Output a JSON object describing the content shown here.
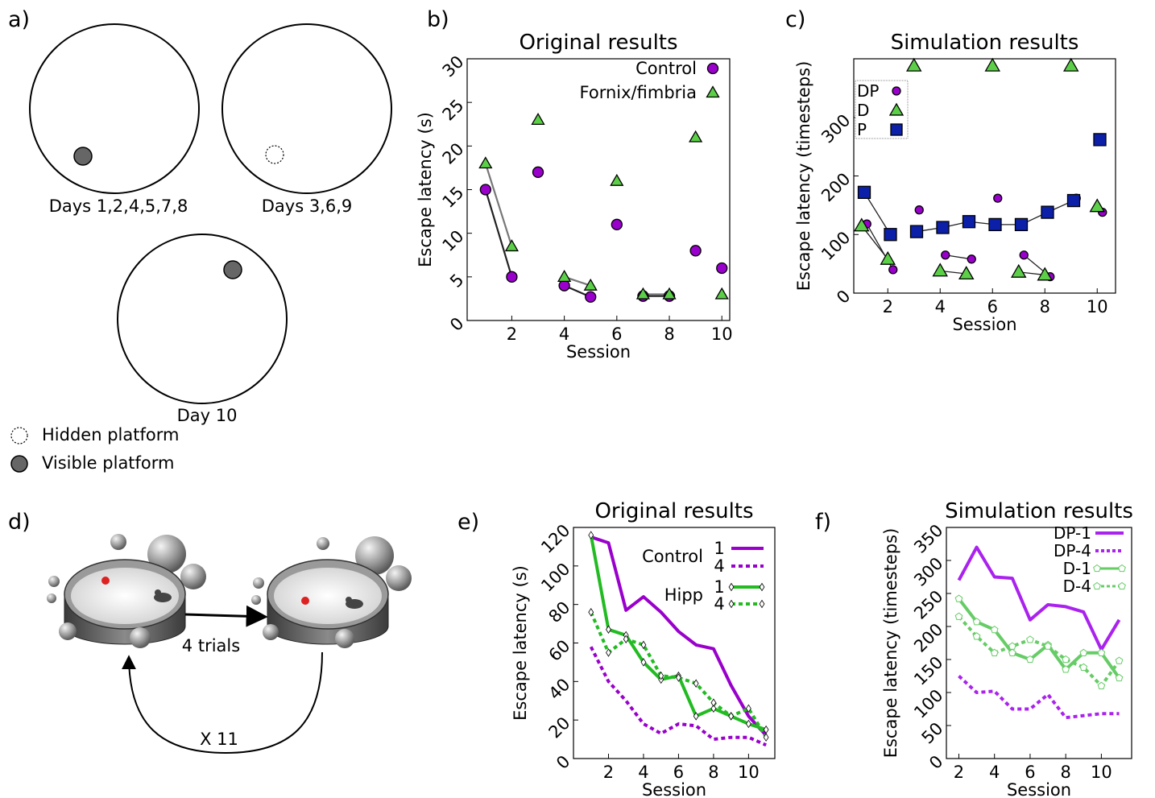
{
  "colors": {
    "purple": "#9900cc",
    "green": "#5ccf48",
    "green_line": "#22bb22",
    "blue": "#0b1fa8",
    "dark_line": "#222222",
    "gray_line": "#777777",
    "platform": "#666666"
  },
  "panel_a": {
    "letter": "a)",
    "labels": [
      "Days 1,2,4,5,7,8",
      "Days 3,6,9",
      "Day 10"
    ],
    "legend": {
      "hidden": "Hidden platform",
      "visible": "Visible platform"
    }
  },
  "panel_d": {
    "letter": "d)",
    "trials_label": "4 trials",
    "repeat_label": "X 11"
  },
  "chart_data": [
    {
      "panel": "b",
      "letter": "b)",
      "type": "scatter",
      "title": "Original results",
      "xlabel": "Session",
      "ylabel": "Escape latency (s)",
      "xlim": [
        0.3,
        10.3
      ],
      "ylim": [
        0,
        30
      ],
      "xticks": [
        2,
        4,
        6,
        8,
        10
      ],
      "yticks": [
        0,
        5,
        10,
        15,
        20,
        25,
        30
      ],
      "legend_position": "top-right",
      "series": [
        {
          "name": "Control",
          "marker": "circle",
          "color": "#9900cc",
          "points": [
            [
              1,
              15
            ],
            [
              2,
              5
            ],
            [
              3,
              17
            ],
            [
              4,
              4
            ],
            [
              5,
              2.7
            ],
            [
              6,
              11
            ],
            [
              7,
              2.8
            ],
            [
              8,
              2.8
            ],
            [
              9,
              8
            ],
            [
              10,
              6
            ]
          ]
        },
        {
          "name": "Fornix/fimbria",
          "marker": "triangle",
          "color": "#5ccf48",
          "points": [
            [
              1,
              18
            ],
            [
              2,
              8.5
            ],
            [
              3,
              23
            ],
            [
              4,
              5
            ],
            [
              5,
              4
            ],
            [
              6,
              16
            ],
            [
              7,
              3
            ],
            [
              8,
              3
            ],
            [
              9,
              21
            ],
            [
              10,
              3
            ]
          ]
        }
      ],
      "links": [
        {
          "series": 0,
          "pairs": [
            [
              0,
              1
            ],
            [
              3,
              4
            ],
            [
              6,
              7
            ]
          ],
          "color": "#222222"
        },
        {
          "series": 1,
          "pairs": [
            [
              0,
              1
            ],
            [
              3,
              4
            ],
            [
              6,
              7
            ]
          ],
          "color": "#777777"
        }
      ]
    },
    {
      "panel": "c",
      "letter": "c)",
      "type": "scatter",
      "title": "Simulation results",
      "xlabel": "Session",
      "ylabel": "Escape latency (timesteps)",
      "xlim": [
        0.7,
        10.7
      ],
      "ylim": [
        0,
        400
      ],
      "xticks": [
        2,
        4,
        6,
        8,
        10
      ],
      "yticks": [
        0,
        100,
        200,
        300
      ],
      "legend_position": "top-left",
      "series": [
        {
          "name": "DP",
          "marker": "circle",
          "color": "#9900cc",
          "points": [
            [
              1.2,
              118
            ],
            [
              2.2,
              40
            ],
            [
              3.2,
              142
            ],
            [
              4.2,
              65
            ],
            [
              5.2,
              58
            ],
            [
              6.2,
              162
            ],
            [
              7.2,
              65
            ],
            [
              8.2,
              28
            ],
            [
              9.2,
              162
            ],
            [
              10.2,
              138
            ]
          ]
        },
        {
          "name": "D",
          "marker": "triangle",
          "color": "#5ccf48",
          "points": [
            [
              1.0,
              115
            ],
            [
              2.0,
              58
            ],
            [
              3.0,
              388
            ],
            [
              4.0,
              38
            ],
            [
              5.0,
              33
            ],
            [
              6.0,
              388
            ],
            [
              7.0,
              36
            ],
            [
              8.0,
              31
            ],
            [
              9.0,
              388
            ],
            [
              10.0,
              148
            ]
          ]
        },
        {
          "name": "P",
          "marker": "square",
          "color": "#0b1fa8",
          "points": [
            [
              1.1,
              172
            ],
            [
              2.1,
              100
            ],
            [
              3.1,
              105
            ],
            [
              4.1,
              112
            ],
            [
              5.1,
              122
            ],
            [
              6.1,
              117
            ],
            [
              7.1,
              117
            ],
            [
              8.1,
              138
            ],
            [
              9.1,
              158
            ],
            [
              10.1,
              262
            ]
          ]
        }
      ],
      "links": [
        {
          "series": 0,
          "pairs": [
            [
              0,
              1
            ],
            [
              3,
              4
            ],
            [
              6,
              7
            ]
          ],
          "color": "#222222"
        },
        {
          "series": 1,
          "pairs": [
            [
              0,
              1
            ],
            [
              3,
              4
            ],
            [
              6,
              7
            ]
          ],
          "color": "#222222"
        },
        {
          "series": 2,
          "pairs": [
            [
              0,
              1
            ],
            [
              2,
              3
            ],
            [
              3,
              4
            ],
            [
              4,
              5
            ],
            [
              5,
              6
            ],
            [
              6,
              7
            ],
            [
              7,
              8
            ]
          ],
          "color": "#222222"
        }
      ]
    },
    {
      "panel": "e",
      "letter": "e)",
      "type": "line",
      "title": "Original results",
      "xlabel": "Session",
      "ylabel": "Escape latency (s)",
      "xlim": [
        0,
        11.5
      ],
      "ylim": [
        0,
        120
      ],
      "xticks": [
        2,
        4,
        6,
        8,
        10
      ],
      "yticks": [
        0,
        20,
        40,
        60,
        80,
        100,
        120
      ],
      "x": [
        1,
        2,
        3,
        4,
        5,
        6,
        7,
        8,
        9,
        10,
        11
      ],
      "legend_groups": [
        "Control",
        "Hipp"
      ],
      "legend_position": "top-right",
      "series": [
        {
          "name": "1",
          "group": "Control",
          "color": "#9900cc",
          "dash": false,
          "marker": "none",
          "values": [
            115,
            112,
            77,
            84,
            76,
            66,
            59,
            57,
            38,
            22,
            12
          ]
        },
        {
          "name": "4",
          "group": "Control",
          "color": "#9900cc",
          "dash": true,
          "marker": "none",
          "values": [
            58,
            40,
            30,
            18,
            13,
            18,
            17,
            10,
            11,
            11,
            7
          ]
        },
        {
          "name": "1",
          "group": "Hipp",
          "color": "#22bb22",
          "dash": false,
          "marker": "diamond",
          "values": [
            116,
            67,
            64,
            50,
            41,
            43,
            22,
            26,
            22,
            18,
            15
          ]
        },
        {
          "name": "4",
          "group": "Hipp",
          "color": "#22bb22",
          "dash": true,
          "marker": "diamond",
          "values": [
            76,
            55,
            62,
            59,
            43,
            42,
            39,
            29,
            22,
            26,
            11
          ]
        }
      ]
    },
    {
      "panel": "f",
      "letter": "f)",
      "type": "line",
      "title": "Simulation results",
      "xlabel": "Session",
      "ylabel": "Escape latency (timesteps)",
      "xlim": [
        1.3,
        11.7
      ],
      "ylim": [
        0,
        350
      ],
      "xticks": [
        2,
        4,
        6,
        8,
        10
      ],
      "yticks": [
        0,
        50,
        100,
        150,
        200,
        250,
        300,
        350
      ],
      "x": [
        2,
        3,
        4,
        5,
        6,
        7,
        8,
        9,
        10,
        11
      ],
      "legend_position": "top-right",
      "series": [
        {
          "name": "DP-1",
          "color": "#aa22ee",
          "dash": false,
          "marker": "none",
          "values": [
            270,
            320,
            275,
            273,
            210,
            233,
            230,
            222,
            165,
            210
          ]
        },
        {
          "name": "DP-4",
          "color": "#aa22ee",
          "dash": true,
          "marker": "none",
          "values": [
            125,
            100,
            102,
            75,
            75,
            97,
            62,
            65,
            68,
            68
          ]
        },
        {
          "name": "D-1",
          "color": "#66cc66",
          "dash": false,
          "marker": "pentagon",
          "values": [
            242,
            207,
            195,
            160,
            150,
            172,
            135,
            160,
            160,
            122
          ]
        },
        {
          "name": "D-4",
          "color": "#66cc66",
          "dash": true,
          "marker": "pentagon",
          "values": [
            215,
            185,
            160,
            170,
            180,
            170,
            150,
            138,
            110,
            148
          ]
        }
      ]
    }
  ]
}
